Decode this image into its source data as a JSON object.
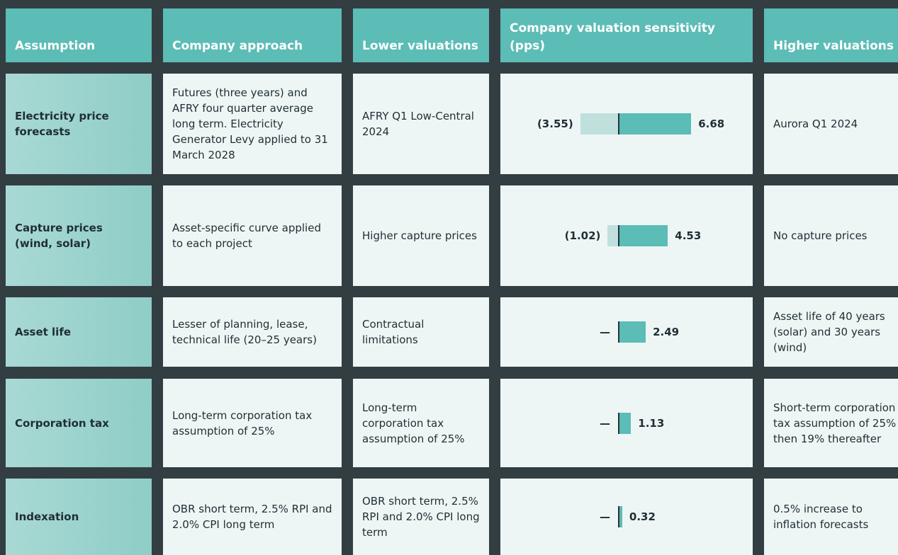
{
  "table": {
    "header": [
      "Assumption",
      "Company approach",
      "Lower valuations",
      "Company valuation sensitivity (pps)",
      "Higher valuations"
    ],
    "rows": [
      {
        "assumption": "Electricity price forecasts",
        "approach": "Futures (three years) and AFRY four quarter average long term. Electricity Generator Levy applied to 31 March 2028",
        "lower": "AFRY Q1 Low-Central 2024",
        "low": -3.55,
        "low_label": "(3.55)",
        "high": 6.68,
        "higher": "Aurora Q1 2024"
      },
      {
        "assumption": "Capture prices (wind, solar)",
        "approach": "Asset-specific curve applied to each project",
        "lower": "Higher capture prices",
        "low": -1.02,
        "low_label": "(1.02)",
        "high": 4.53,
        "higher": "No capture prices"
      },
      {
        "assumption": "Asset life",
        "approach": "Lesser of planning, lease, technical life (20–25 years)",
        "lower": "Contractual limitations",
        "low": null,
        "low_label": "—",
        "high": 2.49,
        "higher": "Asset life of 40 years (solar) and 30 years (wind)"
      },
      {
        "assumption": "Corporation tax",
        "approach": "Long-term corporation tax assumption of 25%",
        "lower": "Long-term corporation tax assumption of 25%",
        "low": null,
        "low_label": "—",
        "high": 1.13,
        "higher": "Short-term corporation tax assumption of 25% then 19% thereafter"
      },
      {
        "assumption": "Indexation",
        "approach": "OBR short term, 2.5% RPI and 2.0% CPI long term",
        "lower": "OBR short term, 2.5% RPI and 2.0% CPI long term",
        "low": null,
        "low_label": "—",
        "high": 0.32,
        "higher": "0.5% increase to inflation forecasts"
      }
    ]
  }
}
